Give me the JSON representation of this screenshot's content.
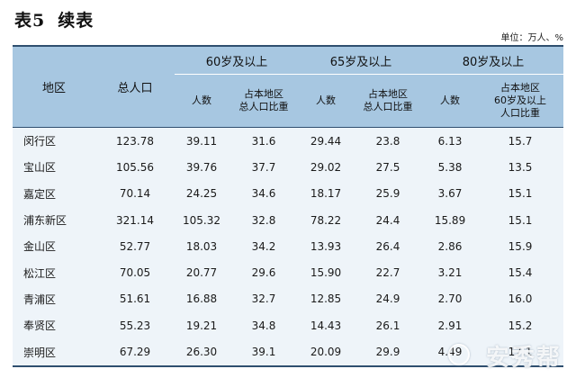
{
  "title": {
    "label": "表5",
    "sub": "续表"
  },
  "unit": "单位：万人、%",
  "headers": {
    "region": "地区",
    "total": "总人口",
    "groups": [
      "60岁及以上",
      "65岁及以上",
      "80岁及以上"
    ],
    "sub": {
      "count": "人数",
      "share_a": "占本地区",
      "share_b": "总人口比重",
      "share80_a": "占本地区",
      "share80_b": "60岁及以上",
      "share80_c": "人口比重"
    }
  },
  "rows": [
    {
      "region": "闵行区",
      "total": "123.78",
      "a_n": "39.11",
      "a_p": "31.6",
      "b_n": "29.44",
      "b_p": "23.8",
      "c_n": "6.13",
      "c_p": "15.7"
    },
    {
      "region": "宝山区",
      "total": "105.56",
      "a_n": "39.76",
      "a_p": "37.7",
      "b_n": "29.02",
      "b_p": "27.5",
      "c_n": "5.38",
      "c_p": "13.5"
    },
    {
      "region": "嘉定区",
      "total": "70.14",
      "a_n": "24.25",
      "a_p": "34.6",
      "b_n": "18.17",
      "b_p": "25.9",
      "c_n": "3.67",
      "c_p": "15.1"
    },
    {
      "region": "浦东新区",
      "total": "321.14",
      "a_n": "105.32",
      "a_p": "32.8",
      "b_n": "78.22",
      "b_p": "24.4",
      "c_n": "15.89",
      "c_p": "15.1"
    },
    {
      "region": "金山区",
      "total": "52.77",
      "a_n": "18.03",
      "a_p": "34.2",
      "b_n": "13.93",
      "b_p": "26.4",
      "c_n": "2.86",
      "c_p": "15.9"
    },
    {
      "region": "松江区",
      "total": "70.05",
      "a_n": "20.77",
      "a_p": "29.6",
      "b_n": "15.90",
      "b_p": "22.7",
      "c_n": "3.21",
      "c_p": "15.4"
    },
    {
      "region": "青浦区",
      "total": "51.61",
      "a_n": "16.88",
      "a_p": "32.7",
      "b_n": "12.85",
      "b_p": "24.9",
      "c_n": "2.70",
      "c_p": "16.0"
    },
    {
      "region": "奉贤区",
      "total": "55.23",
      "a_n": "19.21",
      "a_p": "34.8",
      "b_n": "14.43",
      "b_p": "26.1",
      "c_n": "2.91",
      "c_p": "15.2"
    },
    {
      "region": "崇明区",
      "total": "67.29",
      "a_n": "26.30",
      "a_p": "39.1",
      "b_n": "20.09",
      "b_p": "29.9",
      "c_n": "4.49",
      "c_p": "17.1"
    }
  ],
  "watermark": "安秀帮"
}
